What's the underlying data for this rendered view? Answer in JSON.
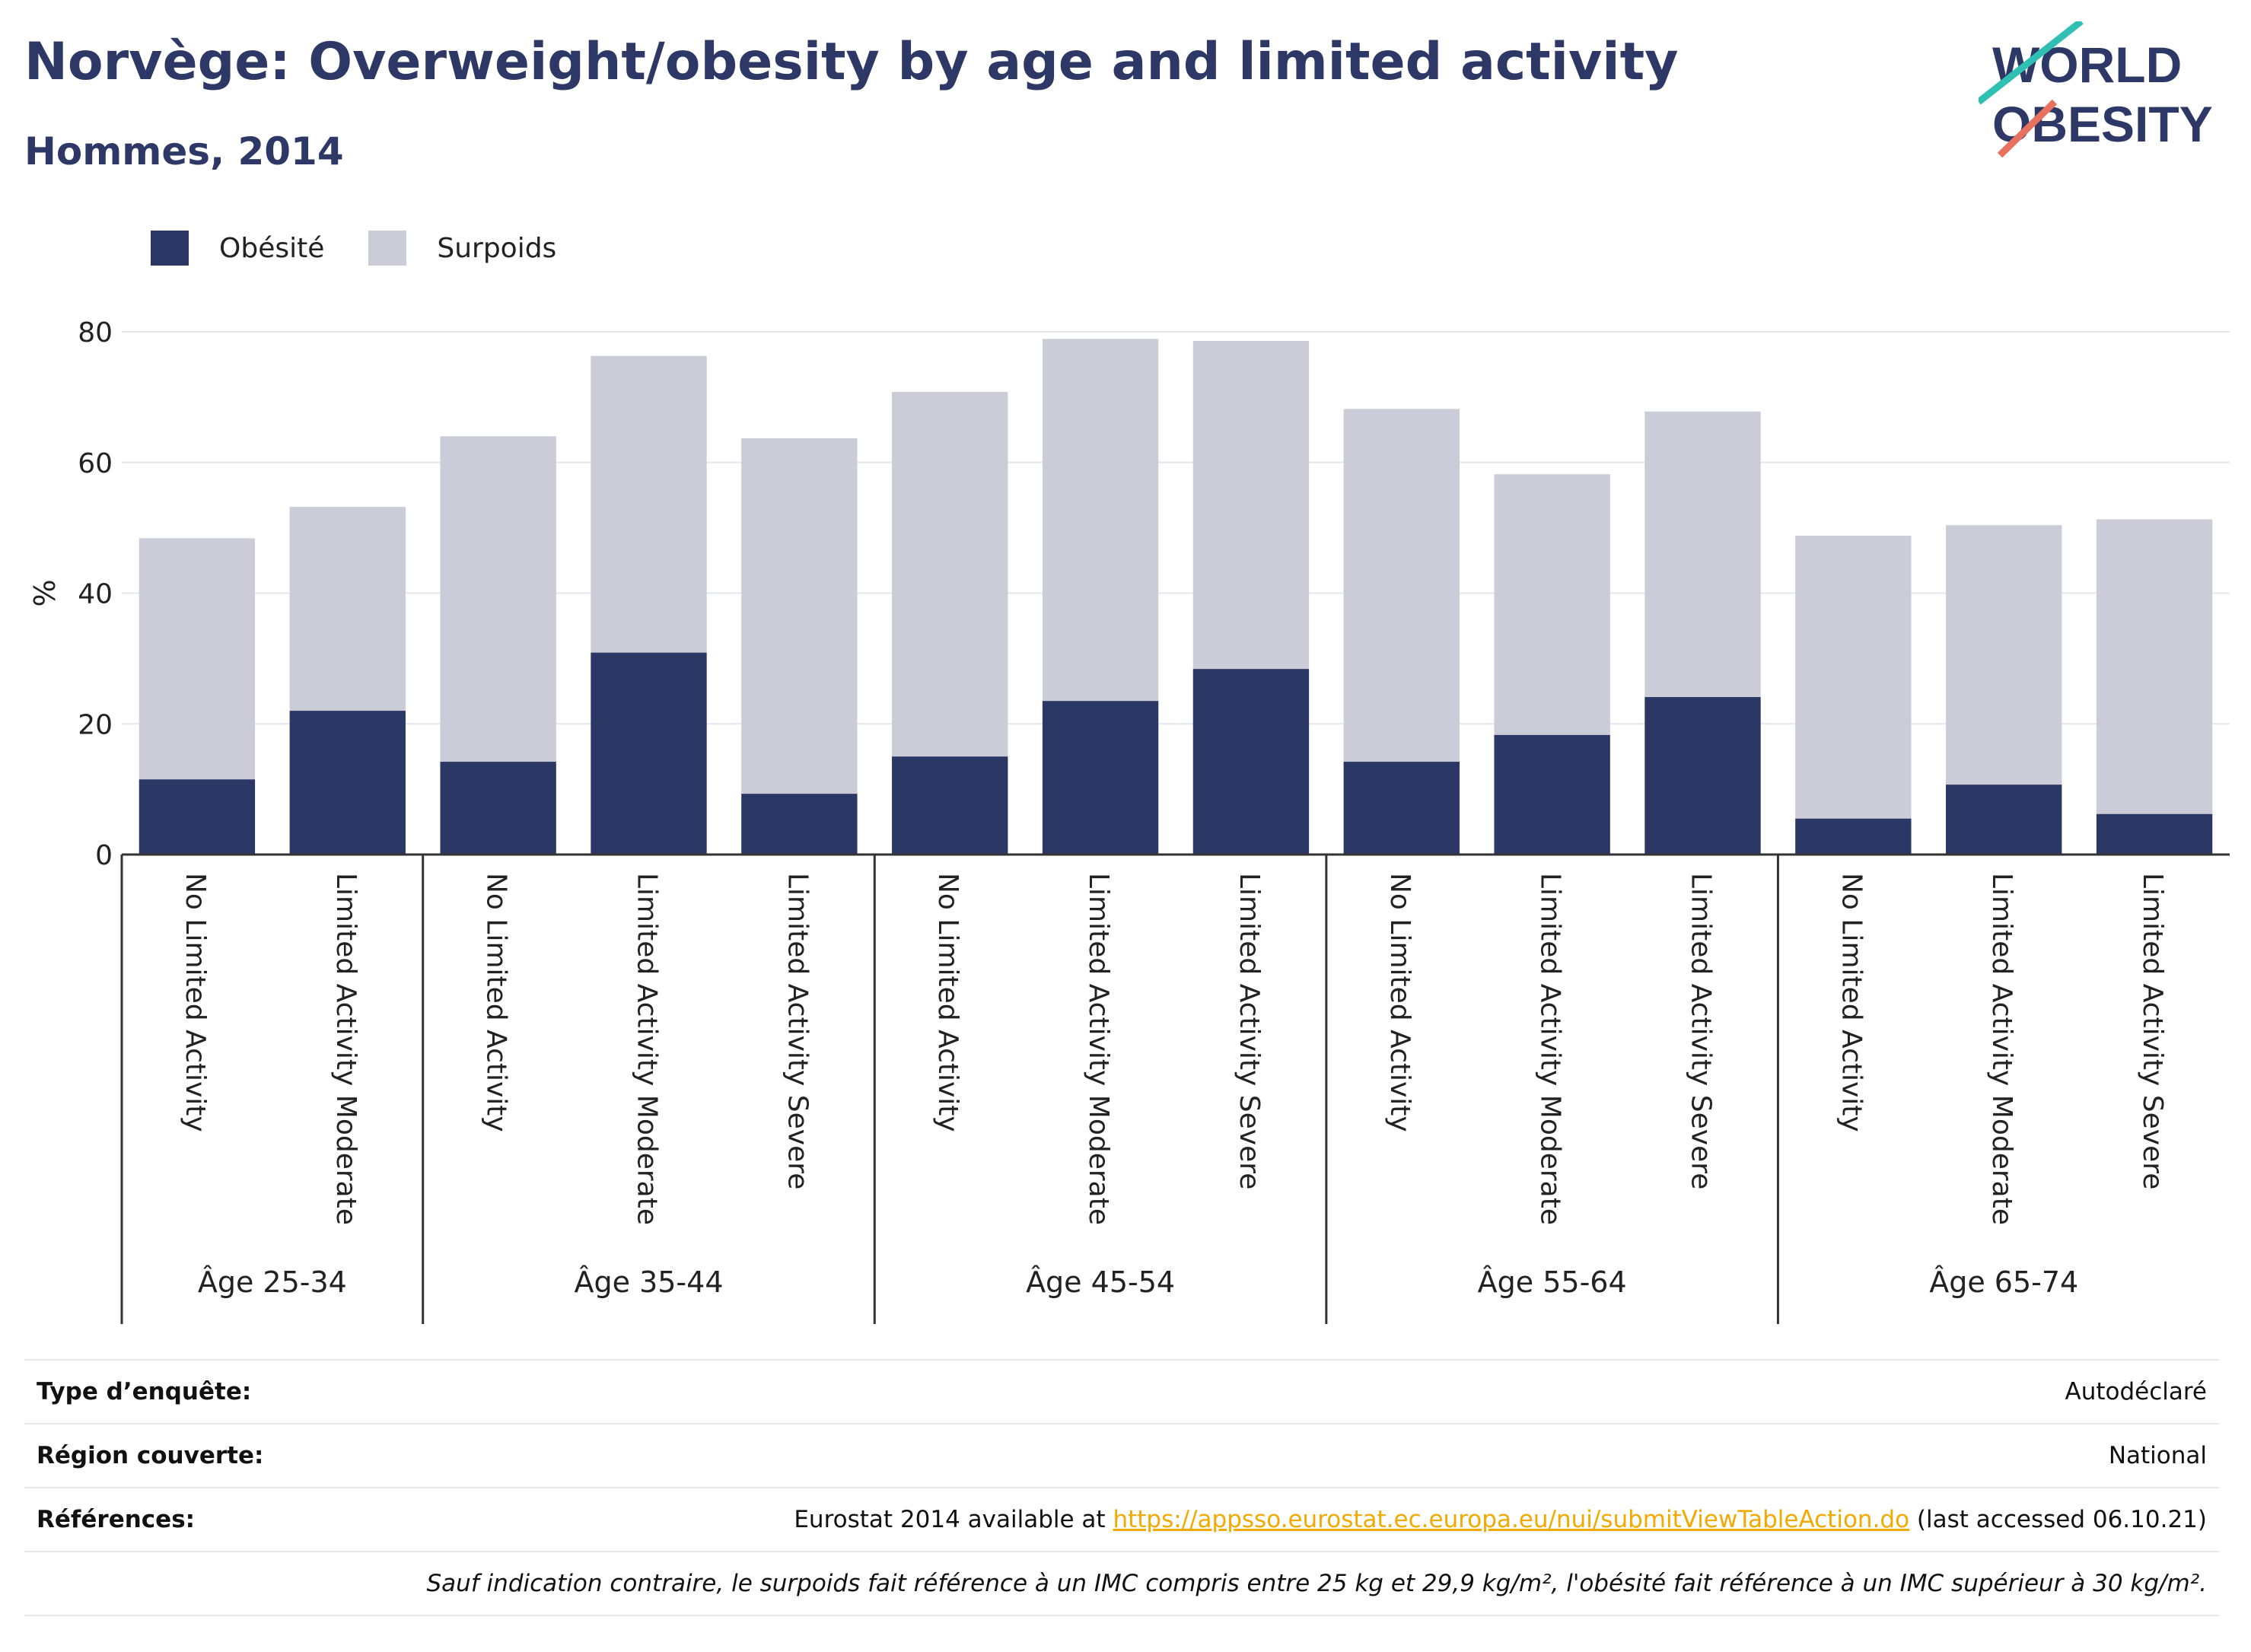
{
  "header": {
    "title": "Norvège: Overweight/obesity by age and limited activity",
    "subtitle": "Hommes, 2014"
  },
  "logo": {
    "line1": "WORLD",
    "line2": "OBESITY"
  },
  "colors": {
    "obesity": "#2b3764",
    "overweight": "#cbccd8",
    "accent_teal": "#2fbfb3",
    "accent_coral": "#e8705f",
    "link": "#f2a900"
  },
  "chart_data": {
    "type": "bar",
    "stacked": true,
    "ylabel": "%",
    "ylim": [
      0,
      80
    ],
    "yticks": [
      0,
      20,
      40,
      60,
      80
    ],
    "grid": true,
    "legend_position": "top-left",
    "categories": [
      {
        "group": "Âge 25-34",
        "label": "No Limited Activity"
      },
      {
        "group": "Âge 25-34",
        "label": "Limited Activity Moderate"
      },
      {
        "group": "Âge 35-44",
        "label": "No Limited Activity"
      },
      {
        "group": "Âge 35-44",
        "label": "Limited Activity Moderate"
      },
      {
        "group": "Âge 35-44",
        "label": "Limited Activity Severe"
      },
      {
        "group": "Âge 45-54",
        "label": "No Limited Activity"
      },
      {
        "group": "Âge 45-54",
        "label": "Limited Activity Moderate"
      },
      {
        "group": "Âge 45-54",
        "label": "Limited Activity Severe"
      },
      {
        "group": "Âge 55-64",
        "label": "No Limited Activity"
      },
      {
        "group": "Âge 55-64",
        "label": "Limited Activity Moderate"
      },
      {
        "group": "Âge 55-64",
        "label": "Limited Activity Severe"
      },
      {
        "group": "Âge 65-74",
        "label": "No Limited Activity"
      },
      {
        "group": "Âge 65-74",
        "label": "Limited Activity Moderate"
      },
      {
        "group": "Âge 65-74",
        "label": "Limited Activity Severe"
      }
    ],
    "groups": [
      "Âge 25-34",
      "Âge 35-44",
      "Âge 45-54",
      "Âge 55-64",
      "Âge 65-74"
    ],
    "series": [
      {
        "name": "Obésité",
        "key": "obesity",
        "values": [
          11.5,
          22.0,
          14.2,
          30.9,
          9.3,
          15.0,
          23.5,
          28.4,
          14.2,
          18.3,
          24.1,
          5.5,
          10.7,
          6.2
        ]
      },
      {
        "name": "Surpoids",
        "key": "overweight",
        "values": [
          36.9,
          31.2,
          49.8,
          45.4,
          54.4,
          55.8,
          55.4,
          50.2,
          54.0,
          39.9,
          43.7,
          43.3,
          39.7,
          45.1
        ]
      }
    ]
  },
  "info": {
    "survey_label": "Type d’enquête:",
    "survey_value": "Autodéclaré",
    "region_label": "Région couverte:",
    "region_value": "National",
    "refs_label": "Références:",
    "refs_prefix": "Eurostat 2014 available at ",
    "refs_link": "https://appsso.eurostat.ec.europa.eu/nui/submitViewTableAction.do",
    "refs_suffix": " (last accessed 06.10.21)",
    "note": "Sauf indication contraire, le surpoids fait référence à un IMC compris entre 25 kg et 29,9 kg/m², l'obésité fait référence à un IMC supérieur à 30 kg/m²."
  }
}
